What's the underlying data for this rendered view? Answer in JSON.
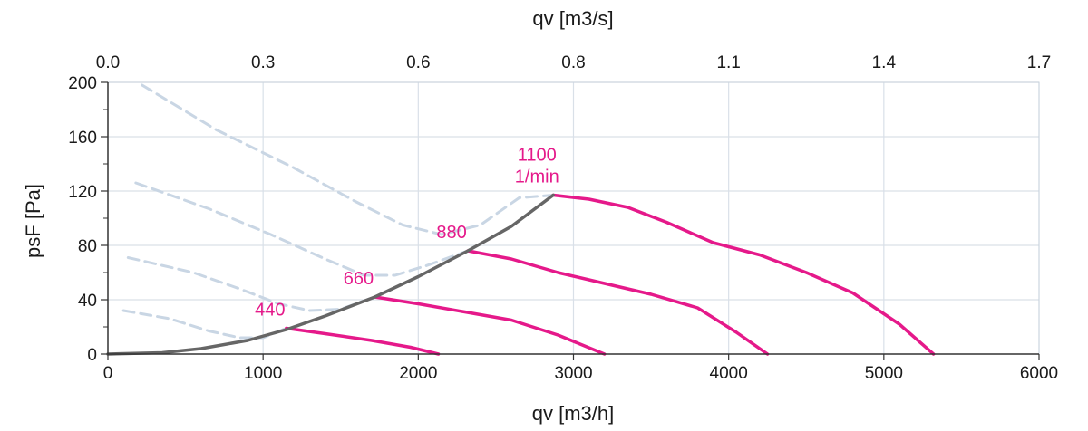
{
  "chart_data": {
    "type": "line",
    "xlabel": "qv [m3/h]",
    "x2label": "qv [m3/s]",
    "ylabel": "psF [Pa]",
    "xlim": [
      0,
      6000
    ],
    "ylim": [
      0,
      200
    ],
    "x_ticks": [
      0,
      1000,
      2000,
      3000,
      4000,
      5000,
      6000
    ],
    "y_ticks": [
      0,
      40,
      80,
      120,
      160,
      200
    ],
    "x2_tick_labels": [
      "0.0",
      "0.3",
      "0.6",
      "0.8",
      "1.1",
      "1.4",
      "1.7"
    ],
    "grid": true,
    "colors": {
      "speed_curve": "#e5198a",
      "system_curve": "#666666",
      "stall_curve": "#c9d6e4",
      "grid": "#d9e0e8",
      "axis": "#333333"
    },
    "series": [
      {
        "name": "1100\n1/min",
        "x": [
          2870,
          3100,
          3350,
          3600,
          3900,
          4200,
          4500,
          4800,
          5100,
          5320
        ],
        "y": [
          117,
          114,
          108,
          97,
          82,
          73,
          60,
          45,
          22,
          0
        ]
      },
      {
        "name": "880",
        "x": [
          2320,
          2600,
          2900,
          3200,
          3500,
          3800,
          4050,
          4250
        ],
        "y": [
          76,
          70,
          60,
          52,
          44,
          34,
          16,
          0
        ]
      },
      {
        "name": "660",
        "x": [
          1720,
          2000,
          2300,
          2600,
          2900,
          3200
        ],
        "y": [
          42,
          37,
          31,
          25,
          14,
          0
        ]
      },
      {
        "name": "440",
        "x": [
          1150,
          1400,
          1700,
          1950,
          2130
        ],
        "y": [
          19,
          15,
          10,
          5,
          0
        ]
      },
      {
        "role": "system_curve",
        "x": [
          0,
          350,
          600,
          900,
          1150,
          1400,
          1720,
          2000,
          2320,
          2600,
          2870
        ],
        "y": [
          0,
          1,
          4,
          10,
          18,
          28,
          42,
          57,
          76,
          94,
          117
        ]
      },
      {
        "role": "stall_1100",
        "x": [
          220,
          700,
          1200,
          1600,
          1900,
          2150,
          2400,
          2650,
          2870
        ],
        "y": [
          198,
          165,
          137,
          112,
          95,
          88,
          95,
          115,
          117
        ]
      },
      {
        "role": "stall_880",
        "x": [
          180,
          650,
          1050,
          1400,
          1650,
          1850,
          2050,
          2320
        ],
        "y": [
          126,
          107,
          88,
          70,
          58,
          58,
          65,
          76
        ]
      },
      {
        "role": "stall_660",
        "x": [
          130,
          550,
          850,
          1100,
          1300,
          1500,
          1720
        ],
        "y": [
          71,
          60,
          48,
          37,
          32,
          33,
          42
        ]
      },
      {
        "role": "stall_440",
        "x": [
          100,
          400,
          650,
          850,
          1000,
          1150
        ],
        "y": [
          32,
          26,
          17,
          12,
          12,
          19
        ]
      }
    ]
  }
}
